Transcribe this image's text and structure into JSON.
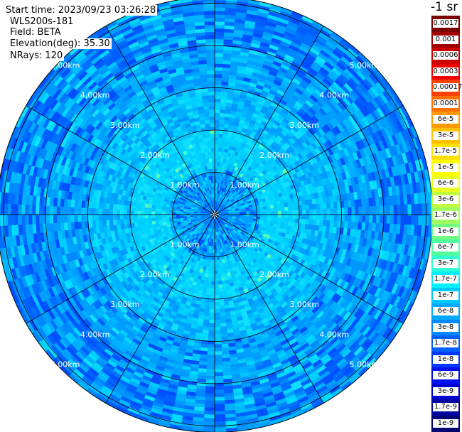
{
  "header": {
    "start_time": "Start time: 2023/09/23 03:26:28",
    "instrument": "WLS200s-181",
    "field": "Field: BETA",
    "elevation": "Elevation(deg): 35.30",
    "nrays": "NRays: 120"
  },
  "colorbar": {
    "unit": "-1 sr",
    "labels": [
      "0.0017",
      "0.001",
      "0.0006",
      "0.0003",
      "0.00017",
      "0.0001",
      "6e-5",
      "3e-5",
      "1.7e-5",
      "1e-5",
      "6e-6",
      "3e-6",
      "1.7e-6",
      "1e-6",
      "6e-7",
      "3e-7",
      "1.7e-7",
      "1e-7",
      "6e-8",
      "3e-8",
      "1.7e-8",
      "1e-8",
      "6e-9",
      "3e-9",
      "1.7e-9",
      "1e-9"
    ],
    "colors": [
      "#7a0000",
      "#a00000",
      "#cc0000",
      "#f00000",
      "#ff4000",
      "#ff7000",
      "#ff9a00",
      "#ffc000",
      "#ffe000",
      "#ffff00",
      "#e8ff20",
      "#c0ff40",
      "#a0ff60",
      "#70ff80",
      "#50ffa0",
      "#30ffd0",
      "#00f0ff",
      "#00c8ff",
      "#00a8ff",
      "#0088ff",
      "#0060ff",
      "#0038ff",
      "#0010f0",
      "#0000d0",
      "#0000a0",
      "#000070"
    ]
  },
  "chart_data": {
    "type": "heatmap",
    "projection": "polar (PPI scan)",
    "field": "BETA",
    "nrays": 120,
    "elevation_deg": 35.3,
    "range_unit": "km",
    "range_rings": [
      1,
      2,
      3,
      4,
      5
    ],
    "range_ring_labels": [
      "1.00km",
      "2.00km",
      "3.00km",
      "4.00km",
      "5.00km"
    ],
    "spokes_deg": [
      0,
      30,
      60,
      90,
      120,
      150,
      180,
      210,
      240,
      270,
      300,
      330
    ],
    "max_range_km": 5.15,
    "value_bands_by_range": [
      {
        "range_km": [
          0.0,
          0.3
        ],
        "value": "6e-8 to 3e-8"
      },
      {
        "range_km": [
          0.3,
          1.1
        ],
        "value": "1e-7 to 3e-8"
      },
      {
        "range_km": [
          1.1,
          2.0
        ],
        "value": "1.7e-7 to 1e-7"
      },
      {
        "range_km": [
          2.0,
          3.0
        ],
        "value": "1e-7 to 6e-8"
      },
      {
        "range_km": [
          3.0,
          4.0
        ],
        "value": "6e-8 to 3e-8"
      },
      {
        "range_km": [
          4.0,
          5.15
        ],
        "value": "3e-8 to 1.7e-8"
      }
    ]
  }
}
